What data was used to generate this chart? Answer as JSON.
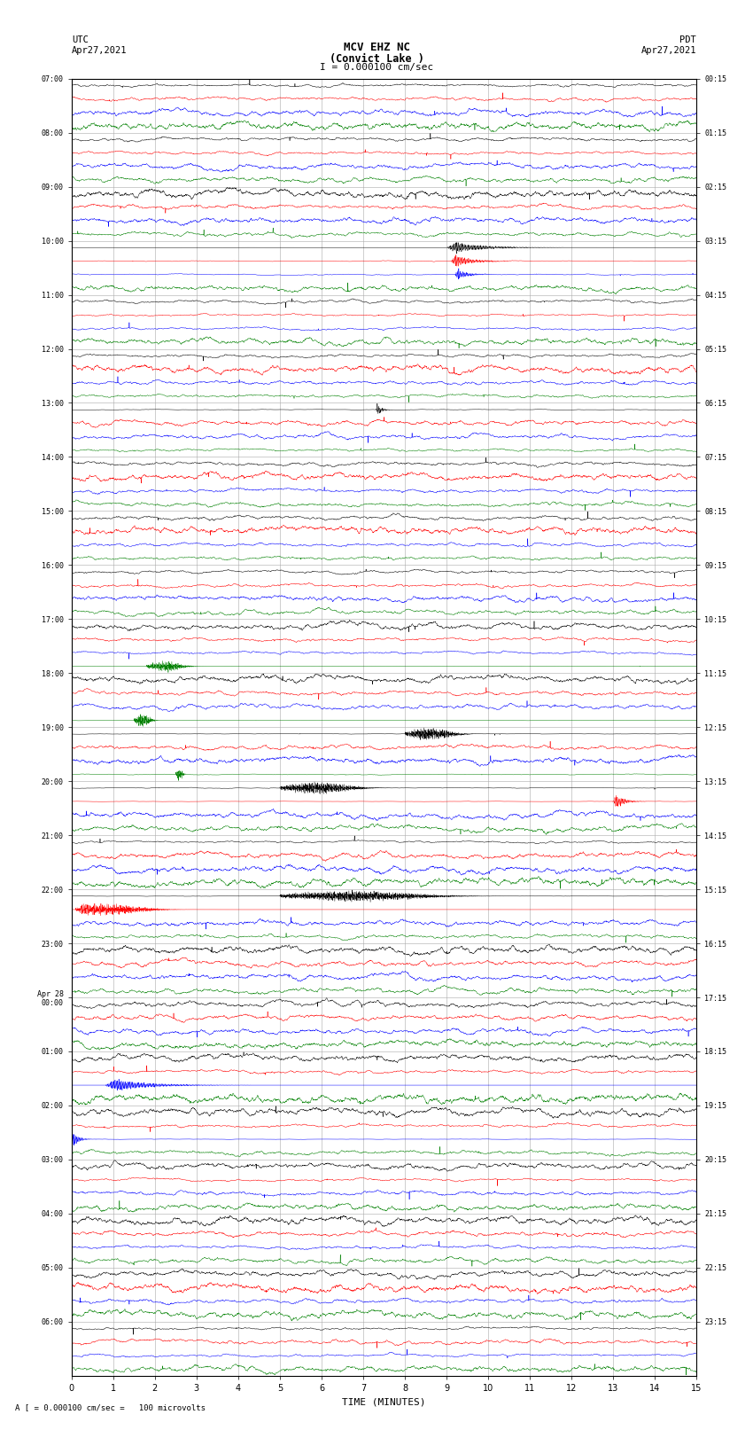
{
  "title_line1": "MCV EHZ NC",
  "title_line2": "(Convict Lake )",
  "scale_label": "I = 0.000100 cm/sec",
  "left_label": "UTC\nApr27,2021",
  "right_label": "PDT\nApr27,2021",
  "bottom_label": "A [ = 0.000100 cm/sec =   100 microvolts",
  "xlabel": "TIME (MINUTES)",
  "left_times": [
    "07:00",
    "08:00",
    "09:00",
    "10:00",
    "11:00",
    "12:00",
    "13:00",
    "14:00",
    "15:00",
    "16:00",
    "17:00",
    "18:00",
    "19:00",
    "20:00",
    "21:00",
    "22:00",
    "23:00",
    "Apr 28\n00:00",
    "01:00",
    "02:00",
    "03:00",
    "04:00",
    "05:00",
    "06:00"
  ],
  "right_times": [
    "00:15",
    "01:15",
    "02:15",
    "03:15",
    "04:15",
    "05:15",
    "06:15",
    "07:15",
    "08:15",
    "09:15",
    "10:15",
    "11:15",
    "12:15",
    "13:15",
    "14:15",
    "15:15",
    "16:15",
    "17:15",
    "18:15",
    "19:15",
    "20:15",
    "21:15",
    "22:15",
    "23:15"
  ],
  "n_rows": 24,
  "n_subrows": 4,
  "minutes_per_row": 15,
  "bg_color": "white",
  "grid_color": "#aaaaaa",
  "line_colors": [
    "black",
    "red",
    "blue",
    "green"
  ]
}
